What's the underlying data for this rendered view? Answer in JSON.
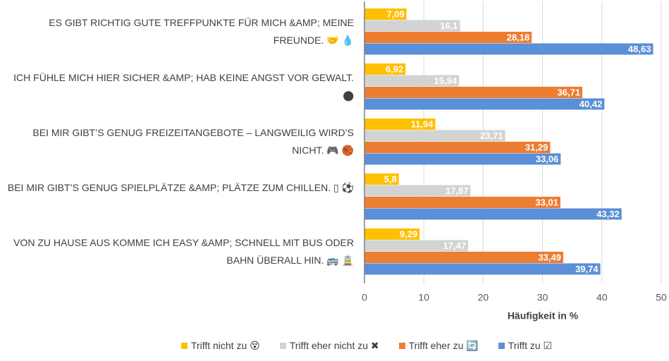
{
  "chart_data": {
    "type": "hbar",
    "categories": [
      "ES GIBT RICHTIG GUTE TREFFPUNKTE FÜR MICH &AMP; MEINE FREUNDE. 🤝 💧",
      "ICH FÜHLE MICH HIER SICHER &AMP; HAB KEINE ANGST VOR GEWALT. ⬤",
      "BEI MIR GIBT’S GENUG FREIZEITANGEBOTE – LANGWEILIG WIRD’S NICHT. 🎮 🏀",
      "BEI MIR GIBT’S GENUG SPIELPLÄTZE &AMP; PLÄTZE ZUM CHILLEN. ▯ ⚽",
      "VON ZU HAUSE AUS KOMME ICH EASY &AMP; SCHNELL MIT BUS ODER BAHN ÜBERALL HIN. 🚌 🚊"
    ],
    "series": [
      {
        "name": "Trifft nicht zu 😵",
        "color": "#ffc000",
        "values": [
          7.09,
          6.92,
          11.94,
          5.8,
          9.29
        ],
        "value_labels": [
          "7,09",
          "6,92",
          "11,94",
          "5,8",
          "9,29"
        ]
      },
      {
        "name": "Trifft eher nicht zu ✖",
        "color": "#d3d3d3",
        "values": [
          16.1,
          15.94,
          23.71,
          17.87,
          17.47
        ],
        "value_labels": [
          "16,1",
          "15,94",
          "23,71",
          "17,87",
          "17,47"
        ]
      },
      {
        "name": "Trifft eher zu 🔄",
        "color": "#ed7d31",
        "values": [
          28.18,
          36.71,
          31.29,
          33.01,
          33.49
        ],
        "value_labels": [
          "28,18",
          "36,71",
          "31,29",
          "33,01",
          "33,49"
        ]
      },
      {
        "name": "Trifft zu ☑",
        "color": "#5b8fd6",
        "values": [
          48.63,
          40.42,
          33.06,
          43.32,
          39.74
        ],
        "value_labels": [
          "48,63",
          "40,42",
          "33,06",
          "43,32",
          "39,74"
        ]
      }
    ],
    "xlabel": "Häufigkeit in %",
    "xlim": [
      0,
      50
    ],
    "xticks": [
      0,
      10,
      20,
      30,
      40,
      50
    ],
    "grid": true
  }
}
